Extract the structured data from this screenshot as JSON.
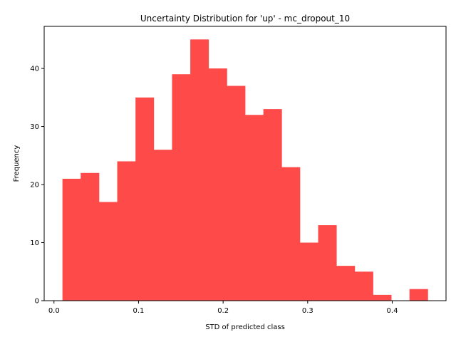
{
  "chart_data": {
    "type": "bar",
    "title": "Uncertainty Distribution for 'up' - mc_dropout_10",
    "xlabel": "STD of predicted class",
    "ylabel": "Frequency",
    "bin_edges": [
      0.01,
      0.0316,
      0.0532,
      0.0748,
      0.0964,
      0.118,
      0.1396,
      0.1612,
      0.1828,
      0.2044,
      0.226,
      0.2476,
      0.2692,
      0.2908,
      0.3124,
      0.334,
      0.3556,
      0.3772,
      0.3988,
      0.4204,
      0.442
    ],
    "values": [
      21,
      22,
      17,
      24,
      35,
      26,
      39,
      45,
      40,
      37,
      32,
      33,
      23,
      10,
      13,
      6,
      5,
      1,
      0,
      2
    ],
    "xlim": [
      -0.0116,
      0.4636
    ],
    "ylim": [
      0,
      47.25
    ],
    "x_ticks": [
      0.0,
      0.1,
      0.2,
      0.3,
      0.4
    ],
    "x_tick_labels": [
      "0.0",
      "0.1",
      "0.2",
      "0.3",
      "0.4"
    ],
    "y_ticks": [
      0,
      10,
      20,
      30,
      40
    ],
    "y_tick_labels": [
      "0",
      "10",
      "20",
      "30",
      "40"
    ],
    "bar_color": "#ff4a4a",
    "grid": false,
    "legend": false
  }
}
